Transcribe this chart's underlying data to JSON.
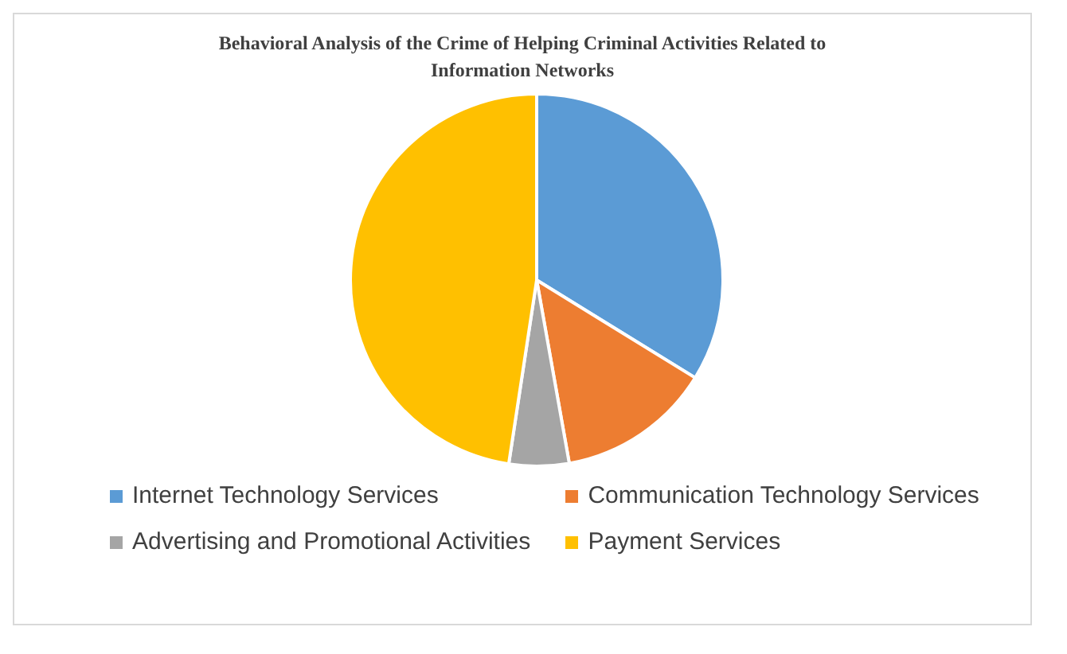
{
  "chart_data": {
    "type": "pie",
    "title": "Behavioral Analysis of the Crime of Helping Criminal Activities Related to Information Networks",
    "categories": [
      "Internet Technology Services",
      "Communication Technology Services",
      "Advertising and Promotional Activities",
      "Payment Services"
    ],
    "values": [
      33.8,
      13.4,
      5.2,
      47.6
    ],
    "colors": [
      "#5b9bd5",
      "#ed7d31",
      "#a5a5a5",
      "#ffc000"
    ],
    "legend": "bottom"
  }
}
